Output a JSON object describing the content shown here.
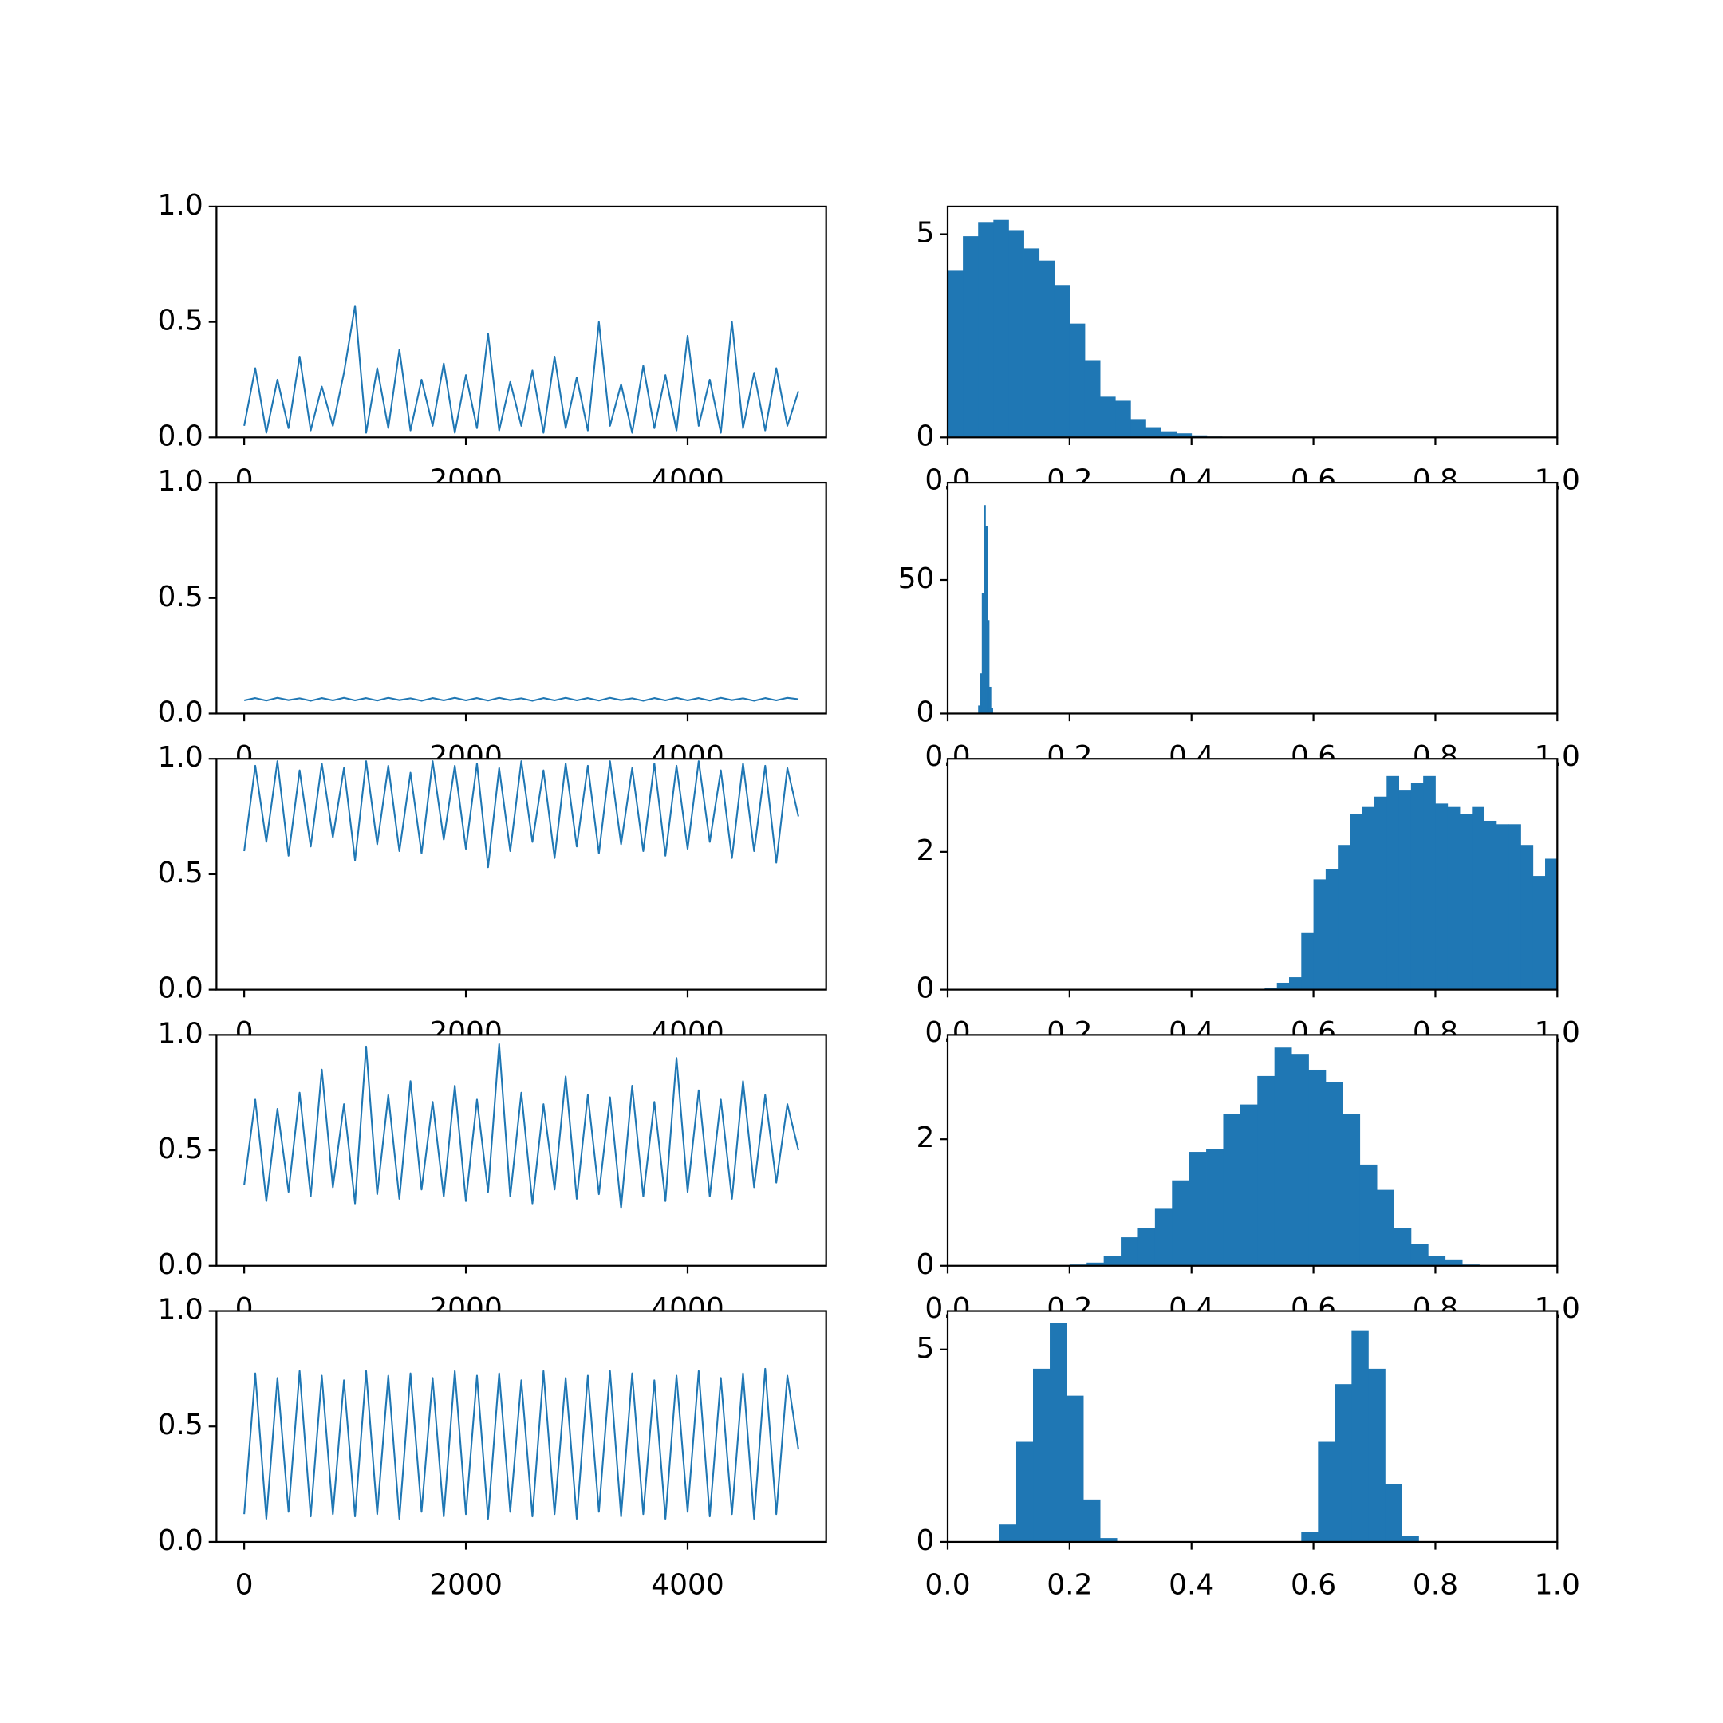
{
  "chart_data": [
    {
      "type": "line",
      "color": "#1f77b4",
      "x": [
        0,
        100,
        200,
        300,
        400,
        500,
        600,
        700,
        800,
        900,
        1000,
        1100,
        1200,
        1300,
        1400,
        1500,
        1600,
        1700,
        1800,
        1900,
        2000,
        2100,
        2200,
        2300,
        2400,
        2500,
        2600,
        2700,
        2800,
        2900,
        3000,
        3100,
        3200,
        3300,
        3400,
        3500,
        3600,
        3700,
        3800,
        3900,
        4000,
        4100,
        4200,
        4300,
        4400,
        4500,
        4600,
        4700,
        4800,
        4900,
        5000
      ],
      "values": [
        0.05,
        0.3,
        0.02,
        0.25,
        0.04,
        0.35,
        0.03,
        0.22,
        0.05,
        0.28,
        0.57,
        0.02,
        0.3,
        0.04,
        0.38,
        0.03,
        0.25,
        0.05,
        0.32,
        0.02,
        0.27,
        0.04,
        0.45,
        0.03,
        0.24,
        0.05,
        0.29,
        0.02,
        0.35,
        0.04,
        0.26,
        0.03,
        0.5,
        0.05,
        0.23,
        0.02,
        0.31,
        0.04,
        0.27,
        0.03,
        0.44,
        0.05,
        0.25,
        0.02,
        0.5,
        0.04,
        0.28,
        0.03,
        0.3,
        0.05,
        0.2
      ],
      "xlim": [
        -250,
        5250
      ],
      "ylim": [
        0,
        1
      ],
      "xticks": [
        0,
        2000,
        4000
      ],
      "yticks": [
        {
          "value": 0,
          "label": "0.0"
        },
        0.5,
        {
          "value": 1,
          "label": "1.0"
        }
      ]
    },
    {
      "type": "histogram",
      "color": "#1f77b4",
      "bins": [
        0,
        0.025,
        0.05,
        0.075,
        0.1,
        0.125,
        0.15,
        0.175,
        0.2,
        0.225,
        0.25,
        0.275,
        0.3,
        0.325,
        0.35,
        0.375,
        0.4,
        0.425,
        0.45
      ],
      "values": [
        4.1,
        4.95,
        5.3,
        5.35,
        5.1,
        4.65,
        4.35,
        3.75,
        2.8,
        1.9,
        1.0,
        0.9,
        0.45,
        0.25,
        0.15,
        0.1,
        0.05,
        0.02
      ],
      "xlim": [
        0,
        1
      ],
      "ylim": [
        0,
        5.68
      ],
      "xticks": [
        {
          "value": 0,
          "label": "0.0"
        },
        0.2,
        0.4,
        0.6,
        0.8,
        {
          "value": 1,
          "label": "1.0"
        }
      ],
      "yticks": [
        0,
        5
      ]
    },
    {
      "type": "line",
      "color": "#1f77b4",
      "x": [
        0,
        100,
        200,
        300,
        400,
        500,
        600,
        700,
        800,
        900,
        1000,
        1100,
        1200,
        1300,
        1400,
        1500,
        1600,
        1700,
        1800,
        1900,
        2000,
        2100,
        2200,
        2300,
        2400,
        2500,
        2600,
        2700,
        2800,
        2900,
        3000,
        3100,
        3200,
        3300,
        3400,
        3500,
        3600,
        3700,
        3800,
        3900,
        4000,
        4100,
        4200,
        4300,
        4400,
        4500,
        4600,
        4700,
        4800,
        4900,
        5000
      ],
      "values": [
        0.057,
        0.067,
        0.056,
        0.068,
        0.058,
        0.066,
        0.055,
        0.067,
        0.057,
        0.068,
        0.057,
        0.067,
        0.056,
        0.068,
        0.058,
        0.066,
        0.055,
        0.067,
        0.057,
        0.068,
        0.057,
        0.067,
        0.056,
        0.068,
        0.058,
        0.066,
        0.055,
        0.067,
        0.057,
        0.068,
        0.057,
        0.067,
        0.056,
        0.068,
        0.058,
        0.066,
        0.055,
        0.067,
        0.057,
        0.068,
        0.057,
        0.067,
        0.056,
        0.068,
        0.058,
        0.066,
        0.055,
        0.067,
        0.057,
        0.068,
        0.062
      ],
      "xlim": [
        -250,
        5250
      ],
      "ylim": [
        0,
        1
      ],
      "xticks": [
        0,
        2000,
        4000
      ],
      "yticks": [
        {
          "value": 0,
          "label": "0.0"
        },
        0.5,
        {
          "value": 1,
          "label": "1.0"
        }
      ]
    },
    {
      "type": "histogram",
      "color": "#1f77b4",
      "bins": [
        0.05,
        0.053,
        0.056,
        0.059,
        0.062,
        0.065,
        0.068,
        0.071,
        0.074
      ],
      "values": [
        3,
        15,
        45,
        78,
        70,
        35,
        10,
        2
      ],
      "xlim": [
        0,
        1
      ],
      "ylim": [
        0,
        86.4
      ],
      "xticks": [
        {
          "value": 0,
          "label": "0.0"
        },
        0.2,
        0.4,
        0.6,
        0.8,
        {
          "value": 1,
          "label": "1.0"
        }
      ],
      "yticks": [
        0,
        50
      ]
    },
    {
      "type": "line",
      "color": "#1f77b4",
      "x": [
        0,
        100,
        200,
        300,
        400,
        500,
        600,
        700,
        800,
        900,
        1000,
        1100,
        1200,
        1300,
        1400,
        1500,
        1600,
        1700,
        1800,
        1900,
        2000,
        2100,
        2200,
        2300,
        2400,
        2500,
        2600,
        2700,
        2800,
        2900,
        3000,
        3100,
        3200,
        3300,
        3400,
        3500,
        3600,
        3700,
        3800,
        3900,
        4000,
        4100,
        4200,
        4300,
        4400,
        4500,
        4600,
        4700,
        4800,
        4900,
        5000
      ],
      "values": [
        0.6,
        0.97,
        0.64,
        0.99,
        0.58,
        0.95,
        0.62,
        0.98,
        0.66,
        0.96,
        0.56,
        0.99,
        0.63,
        0.97,
        0.6,
        0.94,
        0.59,
        0.99,
        0.65,
        0.97,
        0.61,
        0.98,
        0.53,
        0.96,
        0.6,
        0.99,
        0.64,
        0.95,
        0.57,
        0.98,
        0.62,
        0.97,
        0.59,
        0.99,
        0.63,
        0.96,
        0.6,
        0.98,
        0.58,
        0.97,
        0.61,
        0.99,
        0.64,
        0.95,
        0.57,
        0.98,
        0.6,
        0.97,
        0.55,
        0.96,
        0.75
      ],
      "xlim": [
        -250,
        5250
      ],
      "ylim": [
        0,
        1
      ],
      "xticks": [
        0,
        2000,
        4000
      ],
      "yticks": [
        {
          "value": 0,
          "label": "0.0"
        },
        0.5,
        {
          "value": 1,
          "label": "1.0"
        }
      ]
    },
    {
      "type": "histogram",
      "color": "#1f77b4",
      "bins": [
        0.52,
        0.54,
        0.56,
        0.58,
        0.6,
        0.62,
        0.64,
        0.66,
        0.68,
        0.7,
        0.72,
        0.74,
        0.76,
        0.78,
        0.8,
        0.82,
        0.84,
        0.86,
        0.88,
        0.9,
        0.92,
        0.94,
        0.96,
        0.98,
        1.0
      ],
      "values": [
        0.03,
        0.1,
        0.18,
        0.82,
        1.6,
        1.75,
        2.1,
        2.55,
        2.65,
        2.8,
        3.1,
        2.9,
        3.0,
        3.1,
        2.7,
        2.65,
        2.55,
        2.65,
        2.45,
        2.4,
        2.4,
        2.1,
        1.65,
        1.9
      ],
      "xlim": [
        0,
        1
      ],
      "ylim": [
        0,
        3.35
      ],
      "xticks": [
        {
          "value": 0,
          "label": "0.0"
        },
        0.2,
        0.4,
        0.6,
        0.8,
        {
          "value": 1,
          "label": "1.0"
        }
      ],
      "yticks": [
        0,
        2
      ]
    },
    {
      "type": "line",
      "color": "#1f77b4",
      "x": [
        0,
        100,
        200,
        300,
        400,
        500,
        600,
        700,
        800,
        900,
        1000,
        1100,
        1200,
        1300,
        1400,
        1500,
        1600,
        1700,
        1800,
        1900,
        2000,
        2100,
        2200,
        2300,
        2400,
        2500,
        2600,
        2700,
        2800,
        2900,
        3000,
        3100,
        3200,
        3300,
        3400,
        3500,
        3600,
        3700,
        3800,
        3900,
        4000,
        4100,
        4200,
        4300,
        4400,
        4500,
        4600,
        4700,
        4800,
        4900,
        5000
      ],
      "values": [
        0.35,
        0.72,
        0.28,
        0.68,
        0.32,
        0.75,
        0.3,
        0.85,
        0.34,
        0.7,
        0.27,
        0.95,
        0.31,
        0.74,
        0.29,
        0.8,
        0.33,
        0.71,
        0.3,
        0.78,
        0.28,
        0.72,
        0.32,
        0.96,
        0.3,
        0.75,
        0.27,
        0.7,
        0.33,
        0.82,
        0.29,
        0.74,
        0.31,
        0.73,
        0.25,
        0.78,
        0.3,
        0.71,
        0.28,
        0.9,
        0.32,
        0.76,
        0.3,
        0.72,
        0.29,
        0.8,
        0.34,
        0.74,
        0.36,
        0.7,
        0.5
      ],
      "xlim": [
        -250,
        5250
      ],
      "ylim": [
        0,
        1
      ],
      "xticks": [
        0,
        2000,
        4000
      ],
      "yticks": [
        {
          "value": 0,
          "label": "0.0"
        },
        0.5,
        {
          "value": 1,
          "label": "1.0"
        }
      ]
    },
    {
      "type": "histogram",
      "color": "#1f77b4",
      "bins": [
        0.2,
        0.228,
        0.256,
        0.284,
        0.312,
        0.34,
        0.368,
        0.396,
        0.424,
        0.452,
        0.48,
        0.508,
        0.536,
        0.564,
        0.592,
        0.62,
        0.648,
        0.676,
        0.704,
        0.732,
        0.76,
        0.788,
        0.816,
        0.844,
        0.872
      ],
      "values": [
        0.02,
        0.05,
        0.15,
        0.45,
        0.6,
        0.9,
        1.35,
        1.8,
        1.85,
        2.4,
        2.55,
        3.0,
        3.45,
        3.35,
        3.1,
        2.9,
        2.4,
        1.6,
        1.2,
        0.6,
        0.35,
        0.15,
        0.1,
        0.02
      ],
      "xlim": [
        0,
        1
      ],
      "ylim": [
        0,
        3.65
      ],
      "xticks": [
        {
          "value": 0,
          "label": "0.0"
        },
        0.2,
        0.4,
        0.6,
        0.8,
        {
          "value": 1,
          "label": "1.0"
        }
      ],
      "yticks": [
        0,
        2
      ]
    },
    {
      "type": "line",
      "color": "#1f77b4",
      "x": [
        0,
        100,
        200,
        300,
        400,
        500,
        600,
        700,
        800,
        900,
        1000,
        1100,
        1200,
        1300,
        1400,
        1500,
        1600,
        1700,
        1800,
        1900,
        2000,
        2100,
        2200,
        2300,
        2400,
        2500,
        2600,
        2700,
        2800,
        2900,
        3000,
        3100,
        3200,
        3300,
        3400,
        3500,
        3600,
        3700,
        3800,
        3900,
        4000,
        4100,
        4200,
        4300,
        4400,
        4500,
        4600,
        4700,
        4800,
        4900,
        5000
      ],
      "values": [
        0.12,
        0.73,
        0.1,
        0.71,
        0.13,
        0.74,
        0.11,
        0.72,
        0.12,
        0.7,
        0.11,
        0.74,
        0.12,
        0.72,
        0.1,
        0.73,
        0.13,
        0.71,
        0.11,
        0.74,
        0.12,
        0.72,
        0.1,
        0.73,
        0.13,
        0.7,
        0.11,
        0.74,
        0.12,
        0.71,
        0.1,
        0.72,
        0.13,
        0.74,
        0.11,
        0.73,
        0.12,
        0.7,
        0.1,
        0.72,
        0.13,
        0.74,
        0.11,
        0.71,
        0.12,
        0.73,
        0.1,
        0.75,
        0.12,
        0.72,
        0.4
      ],
      "xlim": [
        -250,
        5250
      ],
      "ylim": [
        0,
        1
      ],
      "xticks": [
        0,
        2000,
        4000
      ],
      "yticks": [
        {
          "value": 0,
          "label": "0.0"
        },
        0.5,
        {
          "value": 1,
          "label": "1.0"
        }
      ]
    },
    {
      "type": "histogram",
      "color": "#1f77b4",
      "bins": [
        0.085,
        0.1125,
        0.14,
        0.1675,
        0.195,
        0.2225,
        0.25,
        0.2775,
        0.305,
        0.3325,
        0.36,
        0.3875,
        0.415,
        0.4425,
        0.47,
        0.4975,
        0.525,
        0.5525,
        0.58,
        0.6075,
        0.635,
        0.6625,
        0.69,
        0.7175,
        0.745,
        0.7725
      ],
      "values": [
        0.45,
        2.6,
        4.5,
        5.7,
        3.8,
        1.1,
        0.1,
        0,
        0,
        0,
        0,
        0,
        0,
        0,
        0,
        0,
        0,
        0,
        0.25,
        2.6,
        4.1,
        5.5,
        4.5,
        1.5,
        0.15
      ],
      "xlim": [
        0,
        1
      ],
      "ylim": [
        0,
        6.0
      ],
      "xticks": [
        {
          "value": 0,
          "label": "0.0"
        },
        0.2,
        0.4,
        0.6,
        0.8,
        {
          "value": 1,
          "label": "1.0"
        }
      ],
      "yticks": [
        0,
        5
      ]
    }
  ]
}
